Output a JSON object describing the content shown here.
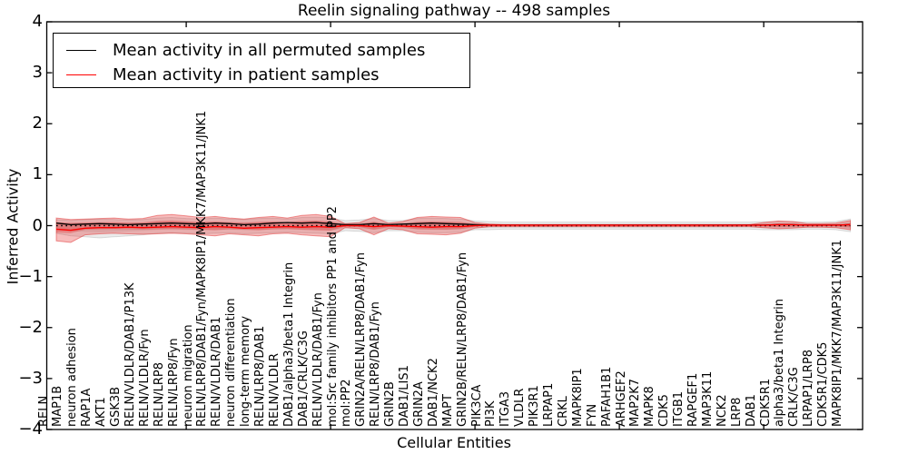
{
  "chart_data": {
    "type": "line",
    "title": "Reelin signaling pathway -- 498 samples",
    "xlabel": "Cellular Entities",
    "ylabel": "Inferred Activity",
    "ylim": [
      -4,
      4
    ],
    "ytick_labels": [
      "4",
      "3",
      "2",
      "1",
      "0",
      "−1",
      "−2",
      "−3",
      "−4"
    ],
    "ytick_values": [
      4,
      3,
      2,
      1,
      0,
      -1,
      -2,
      -3,
      -4
    ],
    "x_major_tick_indices": [
      9,
      19,
      29,
      39,
      49
    ],
    "grid": false,
    "legend_position": "upper left",
    "zero_line": {
      "style": "dotted",
      "color": "#000000",
      "y": 0
    },
    "categories": [
      "RELN",
      "MAP1B",
      "neuron adhesion",
      "RAP1A",
      "AKT1",
      "GSK3B",
      "RELN/VLDLR/DAB1/P13K",
      "RELN/VLDLR/Fyn",
      "RELN/LRP8",
      "RELN/LRP8/Fyn",
      "neuron migration",
      "RELN/LRP8/DAB1/Fyn/MAPK8IP1/MKK7/MAP3K11/JNK1",
      "RELN/VLDLR/DAB1",
      "neuron differentiation",
      "long-term memory",
      "RELN/LRP8/DAB1",
      "RELN/VLDLR",
      "DAB1/alpha3/beta1 Integrin",
      "DAB1/CRLK/C3G",
      "RELN/VLDLR/DAB1/Fyn",
      "mol:Src family inhibitors PP1 and PP2",
      "mol:PP2",
      "GRIN2A/RELN/LRP8/DAB1/Fyn",
      "RELN/LRP8/DAB1/Fyn",
      "GRIN2B",
      "DAB1/LIS1",
      "GRIN2A",
      "DAB1/NCK2",
      "MAPT",
      "GRIN2B/RELN/LRP8/DAB1/Fyn",
      "PIK3CA",
      "PI3K",
      "ITGA3",
      "VLDLR",
      "PIK3R1",
      "LRPAP1",
      "CRKL",
      "MAPK8IP1",
      "FYN",
      "PAFAH1B1",
      "ARHGEF2",
      "MAP2K7",
      "MAPK8",
      "CDK5",
      "ITGB1",
      "RAPGEF1",
      "MAP3K11",
      "NCK2",
      "LRP8",
      "DAB1",
      "CDK5R1",
      "alpha3/beta1 Integrin",
      "CRLK/C3G",
      "LRPAP1/LRP8",
      "CDK5R1/CDK5",
      "MAPK8IP1/MKK7/MAP3K11/JNK1"
    ],
    "series": [
      {
        "name": "Mean activity in all permuted samples",
        "color": "#000000",
        "values": [
          0.05,
          0.02,
          0.03,
          0.04,
          0.03,
          0.02,
          0.03,
          0.04,
          0.05,
          0.04,
          0.03,
          0.05,
          0.04,
          0.02,
          0.03,
          0.05,
          0.06,
          0.05,
          0.06,
          0.04,
          0.02,
          0.02,
          0.04,
          0.02,
          0.03,
          0.04,
          0.05,
          0.04,
          0.03,
          0.02,
          0.01,
          0.01,
          0.01,
          0.01,
          0.01,
          0.01,
          0.01,
          0.01,
          0.01,
          0.01,
          0.01,
          0.01,
          0.01,
          0.01,
          0.01,
          0.01,
          0.01,
          0.01,
          0.01,
          0.01,
          0.02,
          0.02,
          0.01,
          0.01,
          0.01,
          0.02
        ]
      },
      {
        "name": "Mean activity in patient samples",
        "color": "#ff0000",
        "values": [
          -0.07,
          -0.09,
          -0.05,
          -0.04,
          -0.04,
          -0.03,
          -0.04,
          -0.03,
          -0.02,
          -0.03,
          -0.04,
          -0.02,
          -0.03,
          -0.05,
          -0.04,
          -0.03,
          -0.02,
          -0.03,
          -0.02,
          -0.03,
          0.0,
          0.0,
          -0.02,
          0.0,
          -0.01,
          -0.02,
          -0.03,
          -0.02,
          -0.02,
          0.0,
          0.01,
          0.01,
          0.01,
          0.01,
          0.01,
          0.01,
          0.01,
          0.01,
          0.01,
          0.01,
          0.01,
          0.01,
          0.01,
          0.01,
          0.01,
          0.01,
          0.01,
          0.01,
          0.01,
          0.01,
          0.02,
          0.02,
          0.01,
          0.01,
          0.01,
          0.02
        ]
      }
    ],
    "bands": [
      {
        "name": "permuted-samples-std-band",
        "color": "#9a9a9a",
        "upper": [
          0.12,
          0.1,
          0.12,
          0.13,
          0.12,
          0.11,
          0.12,
          0.15,
          0.16,
          0.14,
          0.13,
          0.15,
          0.13,
          0.12,
          0.14,
          0.15,
          0.13,
          0.16,
          0.17,
          0.15,
          0.1,
          0.11,
          0.14,
          0.1,
          0.1,
          0.14,
          0.15,
          0.14,
          0.13,
          0.09,
          0.08,
          0.07,
          0.07,
          0.07,
          0.07,
          0.07,
          0.07,
          0.07,
          0.07,
          0.07,
          0.07,
          0.07,
          0.07,
          0.07,
          0.07,
          0.07,
          0.07,
          0.07,
          0.07,
          0.08,
          0.08,
          0.08,
          0.07,
          0.07,
          0.08,
          0.13
        ],
        "lower": [
          -0.15,
          -0.2,
          -0.22,
          -0.24,
          -0.22,
          -0.2,
          -0.18,
          -0.15,
          -0.14,
          -0.15,
          -0.16,
          -0.15,
          -0.14,
          -0.16,
          -0.15,
          -0.14,
          -0.13,
          -0.14,
          -0.15,
          -0.16,
          -0.1,
          -0.11,
          -0.14,
          -0.1,
          -0.1,
          -0.13,
          -0.14,
          -0.14,
          -0.13,
          -0.08,
          -0.08,
          -0.07,
          -0.07,
          -0.07,
          -0.07,
          -0.07,
          -0.07,
          -0.07,
          -0.07,
          -0.07,
          -0.07,
          -0.07,
          -0.07,
          -0.07,
          -0.07,
          -0.07,
          -0.07,
          -0.07,
          -0.07,
          -0.08,
          -0.08,
          -0.08,
          -0.07,
          -0.07,
          -0.08,
          -0.12
        ]
      },
      {
        "name": "patient-samples-std-band",
        "color": "#e02020",
        "upper": [
          0.15,
          0.12,
          0.13,
          0.14,
          0.15,
          0.13,
          0.14,
          0.2,
          0.22,
          0.19,
          0.16,
          0.18,
          0.15,
          0.13,
          0.16,
          0.18,
          0.15,
          0.2,
          0.22,
          0.18,
          0.04,
          0.06,
          0.17,
          0.05,
          0.08,
          0.16,
          0.18,
          0.17,
          0.16,
          0.06,
          0.03,
          0.02,
          0.02,
          0.02,
          0.02,
          0.02,
          0.02,
          0.02,
          0.02,
          0.02,
          0.02,
          0.02,
          0.02,
          0.02,
          0.02,
          0.02,
          0.02,
          0.02,
          0.02,
          0.06,
          0.09,
          0.08,
          0.04,
          0.04,
          0.05,
          0.1
        ],
        "lower": [
          -0.3,
          -0.33,
          -0.18,
          -0.16,
          -0.15,
          -0.16,
          -0.17,
          -0.16,
          -0.15,
          -0.16,
          -0.18,
          -0.2,
          -0.16,
          -0.18,
          -0.2,
          -0.16,
          -0.15,
          -0.18,
          -0.2,
          -0.22,
          -0.04,
          -0.06,
          -0.18,
          -0.06,
          -0.08,
          -0.16,
          -0.17,
          -0.18,
          -0.15,
          -0.05,
          -0.02,
          -0.02,
          -0.02,
          -0.02,
          -0.02,
          -0.02,
          -0.02,
          -0.02,
          -0.02,
          -0.02,
          -0.02,
          -0.02,
          -0.02,
          -0.02,
          -0.02,
          -0.02,
          -0.02,
          -0.02,
          -0.02,
          -0.04,
          -0.06,
          -0.05,
          -0.03,
          -0.03,
          -0.04,
          -0.08
        ]
      }
    ]
  }
}
